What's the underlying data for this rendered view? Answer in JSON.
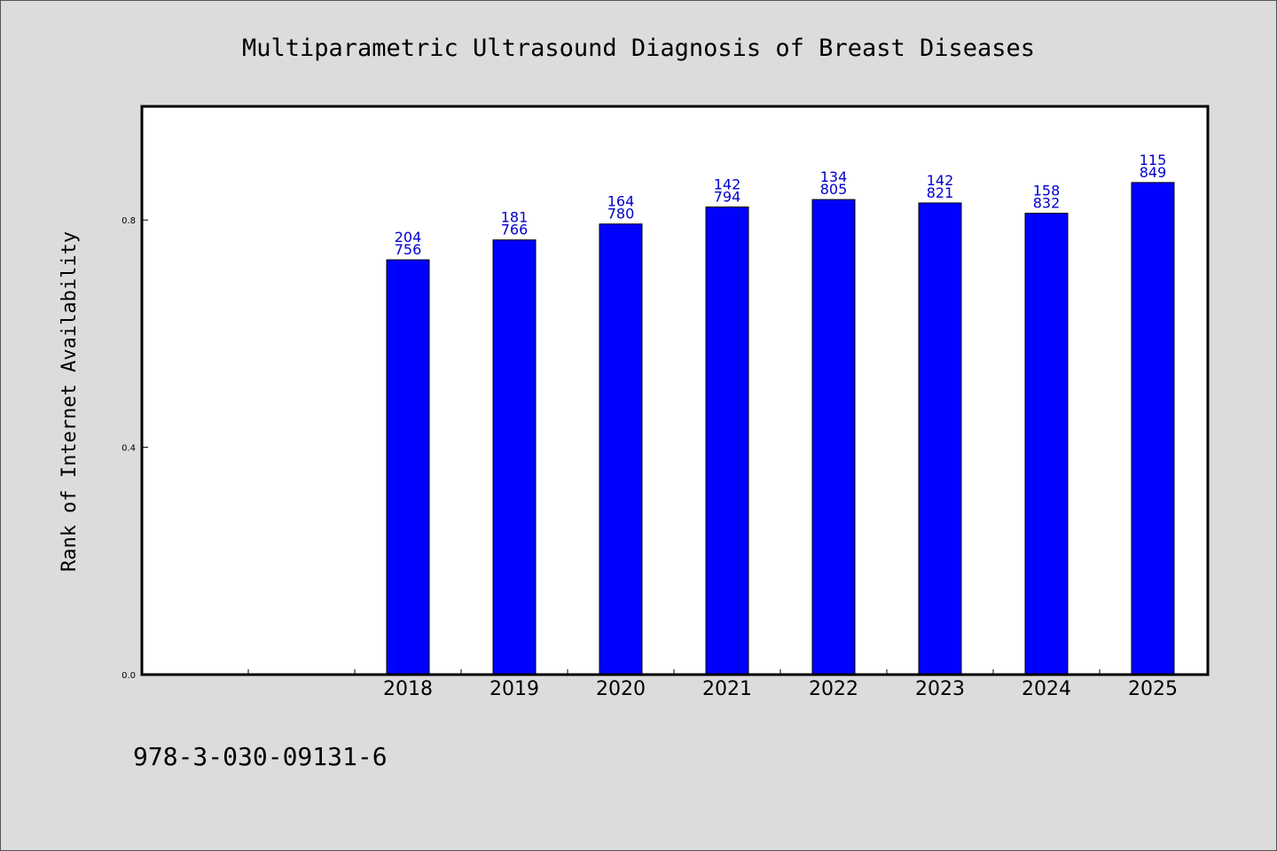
{
  "chart_data": {
    "type": "bar",
    "title": "Multiparametric Ultrasound Diagnosis of Breast Diseases",
    "xlabel": "",
    "ylabel": "Rank of Internet Availability",
    "ylim": [
      0.0,
      1.0
    ],
    "yticks": [
      "0.0",
      "0.4",
      "0.8"
    ],
    "grid": false,
    "categories": [
      "2018",
      "2019",
      "2020",
      "2021",
      "2022",
      "2023",
      "2024",
      "2025"
    ],
    "values": [
      0.73,
      0.765,
      0.793,
      0.823,
      0.836,
      0.83,
      0.812,
      0.866
    ],
    "data_labels_top": [
      "204",
      "181",
      "164",
      "142",
      "134",
      "142",
      "158",
      "115"
    ],
    "data_labels_bottom": [
      "756",
      "766",
      "780",
      "794",
      "805",
      "821",
      "832",
      "849"
    ],
    "bar_color": "#0000ff",
    "label_color": "#0000cc"
  },
  "footer": {
    "isbn": "978-3-030-09131-6"
  }
}
